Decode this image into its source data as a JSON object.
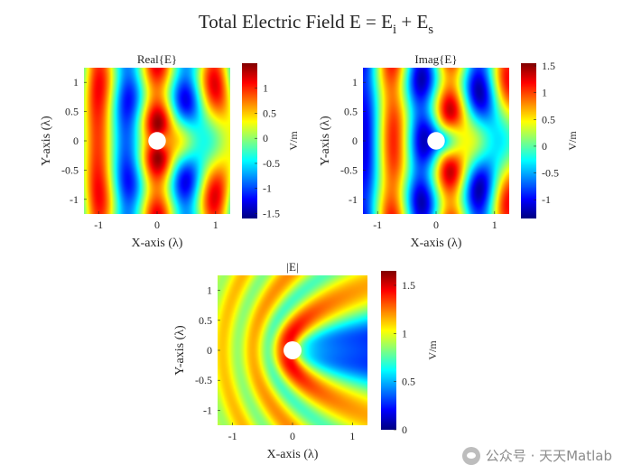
{
  "title": {
    "main": "Total Electric Field",
    "eq_E": "E = E",
    "sub_i": "i",
    "plus": " + E",
    "sub_s": "s"
  },
  "watermark": {
    "text": "公众号 · 天天Matlab",
    "icon": "wechat-icon"
  },
  "chart_data": [
    {
      "type": "heatmap",
      "title": "Real{E}",
      "field": "real",
      "xlabel": "X-axis (λ)",
      "ylabel": "Y-axis (λ)",
      "colorbar_label": "V/m",
      "xlim": [
        -1.25,
        1.25
      ],
      "ylim": [
        -1.25,
        1.25
      ],
      "xticks": [
        -1,
        0,
        1
      ],
      "xticklabels": [
        "-1",
        "0",
        "1"
      ],
      "yticks": [
        1,
        0.5,
        0,
        -0.5,
        -1
      ],
      "yticklabels": [
        "1",
        "0.5",
        "0",
        "-0.5",
        "-1"
      ],
      "clim": [
        -1.6,
        1.5
      ],
      "cticks": [
        1,
        0.5,
        0,
        -0.5,
        -1,
        -1.5
      ],
      "cticklabels": [
        "1",
        "0.5",
        "0",
        "-0.5",
        "-1",
        "-1.5"
      ],
      "cylinder_radius": 0.12,
      "colormap": "jet"
    },
    {
      "type": "heatmap",
      "title": "Imag{E}",
      "field": "imag",
      "xlabel": "X-axis (λ)",
      "ylabel": "Y-axis (λ)",
      "colorbar_label": "V/m",
      "xlim": [
        -1.25,
        1.25
      ],
      "ylim": [
        -1.25,
        1.25
      ],
      "xticks": [
        -1,
        0,
        1
      ],
      "xticklabels": [
        "-1",
        "0",
        "1"
      ],
      "yticks": [
        1,
        0.5,
        0,
        -0.5,
        -1
      ],
      "yticklabels": [
        "1",
        "0.5",
        "0",
        "-0.5",
        "-1"
      ],
      "clim": [
        -1.35,
        1.55
      ],
      "cticks": [
        1.5,
        1,
        0.5,
        0,
        -0.5,
        -1
      ],
      "cticklabels": [
        "1.5",
        "1",
        "0.5",
        "0",
        "-0.5",
        "-1"
      ],
      "cylinder_radius": 0.12,
      "colormap": "jet"
    },
    {
      "type": "heatmap",
      "title": "|E|",
      "field": "abs",
      "xlabel": "X-axis (λ)",
      "ylabel": "Y-axis (λ)",
      "colorbar_label": "V/m",
      "xlim": [
        -1.25,
        1.25
      ],
      "ylim": [
        -1.25,
        1.25
      ],
      "xticks": [
        -1,
        0,
        1
      ],
      "xticklabels": [
        "-1",
        "0",
        "1"
      ],
      "yticks": [
        1,
        0.5,
        0,
        -0.5,
        -1
      ],
      "yticklabels": [
        "1",
        "0.5",
        "0",
        "-0.5",
        "-1"
      ],
      "clim": [
        0,
        1.65
      ],
      "cticks": [
        1.5,
        1,
        0.5,
        0
      ],
      "cticklabels": [
        "1.5",
        "1",
        "0.5",
        "0"
      ],
      "cylinder_radius": 0.12,
      "colormap": "jet"
    }
  ]
}
